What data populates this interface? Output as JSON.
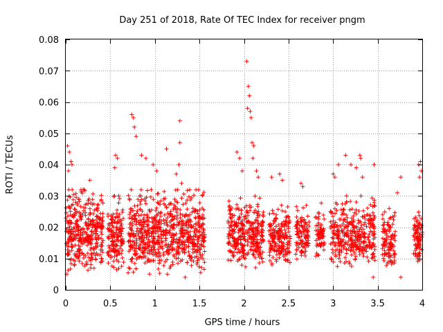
{
  "chart_data": {
    "type": "scatter",
    "title": "Day 251 of 2018, Rate Of TEC Index for receiver pngm",
    "xlabel": "GPS time / hours",
    "ylabel": "ROTI / TECUs",
    "xlim": [
      0,
      4
    ],
    "ylim": [
      0,
      0.08
    ],
    "x_ticks": [
      0,
      0.5,
      1,
      1.5,
      2,
      2.5,
      3,
      3.5,
      4
    ],
    "x_tick_labels": [
      "0",
      "0.5",
      "1",
      "1.5",
      "2",
      "2.5",
      "3",
      "3.5",
      "4"
    ],
    "y_ticks": [
      0,
      0.01,
      0.02,
      0.03,
      0.04,
      0.05,
      0.06,
      0.07,
      0.08
    ],
    "y_tick_labels": [
      "0",
      "0.01",
      "0.02",
      "0.03",
      "0.04",
      "0.05",
      "0.06",
      "0.07",
      "0.08"
    ],
    "grid": true,
    "marker": "+",
    "marker_color": "#ff0000",
    "clusters": [
      {
        "x_range": [
          0.0,
          0.42
        ],
        "y_range": [
          0.005,
          0.032
        ],
        "count": 380
      },
      {
        "x_range": [
          0.47,
          0.65
        ],
        "y_range": [
          0.005,
          0.03
        ],
        "count": 160
      },
      {
        "x_range": [
          0.7,
          1.56
        ],
        "y_range": [
          0.004,
          0.032
        ],
        "count": 720
      },
      {
        "x_range": [
          1.82,
          2.22
        ],
        "y_range": [
          0.006,
          0.03
        ],
        "count": 340
      },
      {
        "x_range": [
          2.28,
          2.52
        ],
        "y_range": [
          0.007,
          0.027
        ],
        "count": 190
      },
      {
        "x_range": [
          2.58,
          2.73
        ],
        "y_range": [
          0.008,
          0.028
        ],
        "count": 110
      },
      {
        "x_range": [
          2.8,
          2.9
        ],
        "y_range": [
          0.007,
          0.028
        ],
        "count": 70
      },
      {
        "x_range": [
          2.97,
          3.47
        ],
        "y_range": [
          0.006,
          0.03
        ],
        "count": 360
      },
      {
        "x_range": [
          3.55,
          3.7
        ],
        "y_range": [
          0.006,
          0.026
        ],
        "count": 110
      },
      {
        "x_range": [
          3.9,
          4.0
        ],
        "y_range": [
          0.007,
          0.026
        ],
        "count": 90
      }
    ],
    "outliers": [
      {
        "x": 0.02,
        "y": 0.046
      },
      {
        "x": 0.04,
        "y": 0.044
      },
      {
        "x": 0.06,
        "y": 0.041
      },
      {
        "x": 0.07,
        "y": 0.04
      },
      {
        "x": 0.03,
        "y": 0.038
      },
      {
        "x": 0.27,
        "y": 0.035
      },
      {
        "x": 0.56,
        "y": 0.043
      },
      {
        "x": 0.58,
        "y": 0.042
      },
      {
        "x": 0.55,
        "y": 0.039
      },
      {
        "x": 0.74,
        "y": 0.056
      },
      {
        "x": 0.76,
        "y": 0.055
      },
      {
        "x": 0.77,
        "y": 0.052
      },
      {
        "x": 0.79,
        "y": 0.049
      },
      {
        "x": 0.85,
        "y": 0.043
      },
      {
        "x": 0.9,
        "y": 0.042
      },
      {
        "x": 0.98,
        "y": 0.04
      },
      {
        "x": 1.02,
        "y": 0.038
      },
      {
        "x": 1.13,
        "y": 0.045
      },
      {
        "x": 1.28,
        "y": 0.054
      },
      {
        "x": 1.28,
        "y": 0.047
      },
      {
        "x": 1.27,
        "y": 0.04
      },
      {
        "x": 1.24,
        "y": 0.037
      },
      {
        "x": 1.3,
        "y": 0.034
      },
      {
        "x": 1.49,
        "y": 0.032
      },
      {
        "x": 1.92,
        "y": 0.044
      },
      {
        "x": 1.95,
        "y": 0.042
      },
      {
        "x": 1.98,
        "y": 0.038
      },
      {
        "x": 2.03,
        "y": 0.073
      },
      {
        "x": 2.05,
        "y": 0.065
      },
      {
        "x": 2.06,
        "y": 0.062
      },
      {
        "x": 2.04,
        "y": 0.058
      },
      {
        "x": 2.07,
        "y": 0.057
      },
      {
        "x": 2.08,
        "y": 0.055
      },
      {
        "x": 2.09,
        "y": 0.047
      },
      {
        "x": 2.11,
        "y": 0.046
      },
      {
        "x": 2.1,
        "y": 0.042
      },
      {
        "x": 2.14,
        "y": 0.038
      },
      {
        "x": 2.16,
        "y": 0.036
      },
      {
        "x": 2.31,
        "y": 0.036
      },
      {
        "x": 2.4,
        "y": 0.037
      },
      {
        "x": 2.43,
        "y": 0.035
      },
      {
        "x": 2.64,
        "y": 0.034
      },
      {
        "x": 2.66,
        "y": 0.033
      },
      {
        "x": 3.0,
        "y": 0.037
      },
      {
        "x": 3.02,
        "y": 0.036
      },
      {
        "x": 3.06,
        "y": 0.04
      },
      {
        "x": 3.14,
        "y": 0.043
      },
      {
        "x": 3.2,
        "y": 0.04
      },
      {
        "x": 3.26,
        "y": 0.039
      },
      {
        "x": 3.3,
        "y": 0.043
      },
      {
        "x": 3.31,
        "y": 0.042
      },
      {
        "x": 3.33,
        "y": 0.036
      },
      {
        "x": 3.46,
        "y": 0.04
      },
      {
        "x": 3.76,
        "y": 0.036
      },
      {
        "x": 3.72,
        "y": 0.031
      },
      {
        "x": 3.96,
        "y": 0.04
      },
      {
        "x": 3.98,
        "y": 0.041
      },
      {
        "x": 3.99,
        "y": 0.038
      },
      {
        "x": 3.97,
        "y": 0.036
      },
      {
        "x": 3.76,
        "y": 0.004
      },
      {
        "x": 0.01,
        "y": 0.005
      },
      {
        "x": 1.14,
        "y": 0.005
      },
      {
        "x": 1.34,
        "y": 0.004
      },
      {
        "x": 3.45,
        "y": 0.004
      }
    ]
  }
}
